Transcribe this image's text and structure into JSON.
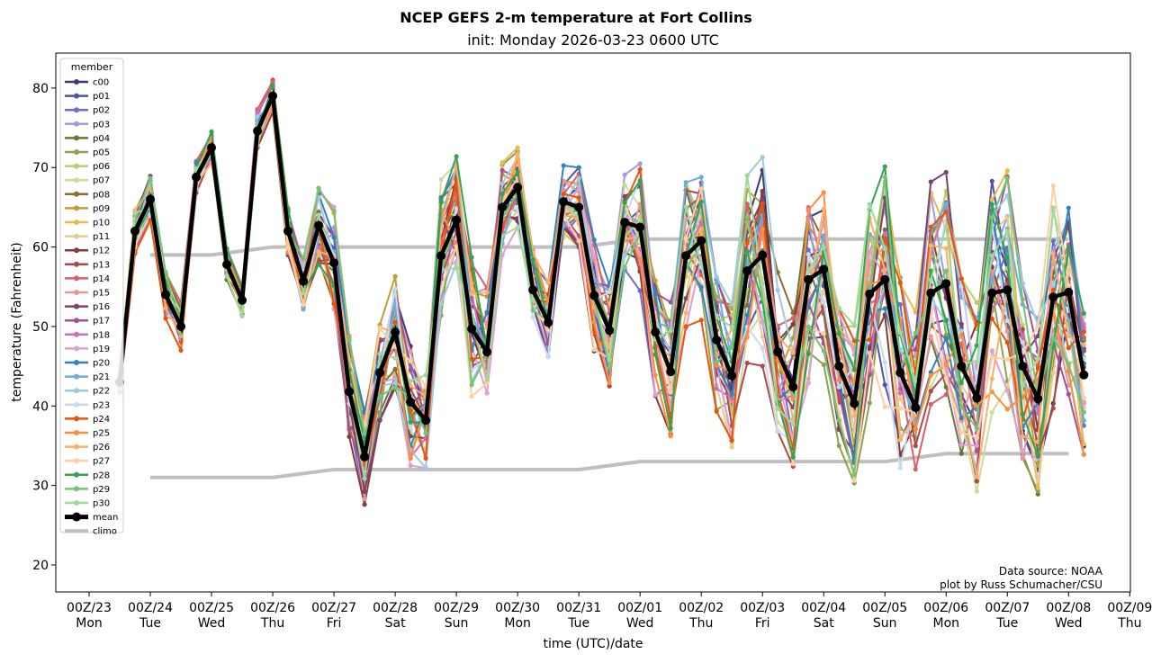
{
  "chart_data": {
    "type": "line",
    "title": "NCEP GEFS 2-m temperature at Fort Collins",
    "subtitle": "init: Monday 2026-03-23 0600 UTC",
    "xlabel": "time (UTC)/date",
    "ylabel": "temperature (Fahrenheit)",
    "ylim": [
      16.6,
      84.4
    ],
    "yticks": [
      20,
      30,
      40,
      50,
      60,
      70,
      80
    ],
    "xlim_days": [
      -0.544,
      17.01
    ],
    "xticks": [
      {
        "l1": "00Z/23",
        "l2": "Mon"
      },
      {
        "l1": "00Z/24",
        "l2": "Tue"
      },
      {
        "l1": "00Z/25",
        "l2": "Wed"
      },
      {
        "l1": "00Z/26",
        "l2": "Thu"
      },
      {
        "l1": "00Z/27",
        "l2": "Fri"
      },
      {
        "l1": "00Z/28",
        "l2": "Sat"
      },
      {
        "l1": "00Z/29",
        "l2": "Sun"
      },
      {
        "l1": "00Z/30",
        "l2": "Mon"
      },
      {
        "l1": "00Z/31",
        "l2": "Tue"
      },
      {
        "l1": "00Z/01",
        "l2": "Wed"
      },
      {
        "l1": "00Z/02",
        "l2": "Thu"
      },
      {
        "l1": "00Z/03",
        "l2": "Fri"
      },
      {
        "l1": "00Z/04",
        "l2": "Sat"
      },
      {
        "l1": "00Z/05",
        "l2": "Sun"
      },
      {
        "l1": "00Z/06",
        "l2": "Mon"
      },
      {
        "l1": "00Z/07",
        "l2": "Tue"
      },
      {
        "l1": "00Z/08",
        "l2": "Wed"
      },
      {
        "l1": "00Z/09",
        "l2": "Thu"
      }
    ],
    "time_start_day": 0.5,
    "time_step_hours": 6,
    "legend": {
      "title": "member",
      "placement": "top-left"
    },
    "members": [
      {
        "name": "c00",
        "color": "#393b79"
      },
      {
        "name": "p01",
        "color": "#5254a3"
      },
      {
        "name": "p02",
        "color": "#6b6ecf"
      },
      {
        "name": "p03",
        "color": "#9c9ede"
      },
      {
        "name": "p04",
        "color": "#637939"
      },
      {
        "name": "p05",
        "color": "#8ca252"
      },
      {
        "name": "p06",
        "color": "#b5cf6b"
      },
      {
        "name": "p07",
        "color": "#cedb9c"
      },
      {
        "name": "p08",
        "color": "#8c6d31"
      },
      {
        "name": "p09",
        "color": "#bd9e39"
      },
      {
        "name": "p10",
        "color": "#e7ba52"
      },
      {
        "name": "p11",
        "color": "#e7cb94"
      },
      {
        "name": "p12",
        "color": "#843c39"
      },
      {
        "name": "p13",
        "color": "#ad494a"
      },
      {
        "name": "p14",
        "color": "#d6616b"
      },
      {
        "name": "p15",
        "color": "#e7969c"
      },
      {
        "name": "p16",
        "color": "#7b4173"
      },
      {
        "name": "p17",
        "color": "#a55194"
      },
      {
        "name": "p18",
        "color": "#ce6dbd"
      },
      {
        "name": "p19",
        "color": "#de9ed6"
      },
      {
        "name": "p20",
        "color": "#3182bd"
      },
      {
        "name": "p21",
        "color": "#6baed6"
      },
      {
        "name": "p22",
        "color": "#9ecae1"
      },
      {
        "name": "p23",
        "color": "#c6dbef"
      },
      {
        "name": "p24",
        "color": "#e6550d"
      },
      {
        "name": "p25",
        "color": "#fd8d3c"
      },
      {
        "name": "p26",
        "color": "#fdae6b"
      },
      {
        "name": "p27",
        "color": "#fdd0a2"
      },
      {
        "name": "p28",
        "color": "#31a354"
      },
      {
        "name": "p29",
        "color": "#74c476"
      },
      {
        "name": "p30",
        "color": "#a1d99b"
      }
    ],
    "mean": {
      "name": "mean",
      "color": "#000000",
      "values": [
        43,
        62,
        66,
        54,
        50,
        68.8,
        72.5,
        57.8,
        53.3,
        74.6,
        79,
        62,
        55.7,
        62.7,
        58,
        41.8,
        33.6,
        44.2,
        49.3,
        40.5,
        38.2,
        58.9,
        63.4,
        49.7,
        46.8,
        65,
        67.5,
        54.6,
        50.5,
        65.7,
        65,
        53.9,
        49.5,
        63.1,
        62.5,
        49.3,
        44.3,
        58.9,
        60.8,
        48.3,
        43.8,
        57,
        59,
        46.8,
        42.4,
        55.9,
        57.2,
        45,
        40.3,
        54.1,
        55.9,
        44.2,
        39.8,
        54.2,
        55.4,
        45,
        41,
        54.2,
        54.6,
        45,
        40.9,
        53.7,
        54.3,
        43.9
      ]
    },
    "spread": [
      2,
      3,
      3,
      3,
      3,
      2,
      2,
      2,
      2,
      3,
      2,
      3,
      4,
      6,
      8,
      7,
      6,
      6,
      7,
      8,
      6,
      10,
      8,
      9,
      8,
      6,
      5,
      5,
      5,
      5,
      5,
      7,
      7,
      6,
      8,
      8,
      9,
      10,
      10,
      9,
      9,
      12,
      14,
      10,
      10,
      13,
      12,
      10,
      10,
      15,
      16,
      12,
      12,
      14,
      14,
      11,
      12,
      15,
      15,
      12,
      12,
      14,
      14,
      10
    ],
    "climo": {
      "name": "climo",
      "color": "#bfbfbf",
      "days": [
        1,
        2,
        3,
        4,
        5,
        6,
        7,
        8,
        9,
        10,
        11,
        12,
        13,
        14,
        15,
        16
      ],
      "high": [
        59,
        59,
        60,
        60,
        60,
        60,
        60,
        60,
        61,
        61,
        61,
        61,
        61,
        61,
        61,
        61
      ],
      "low": [
        31,
        31,
        31,
        32,
        32,
        32,
        32,
        32,
        33,
        33,
        33,
        33,
        33,
        34,
        34,
        34
      ]
    },
    "annotation": [
      "Data source: NOAA",
      "plot by Russ Schumacher/CSU"
    ]
  }
}
